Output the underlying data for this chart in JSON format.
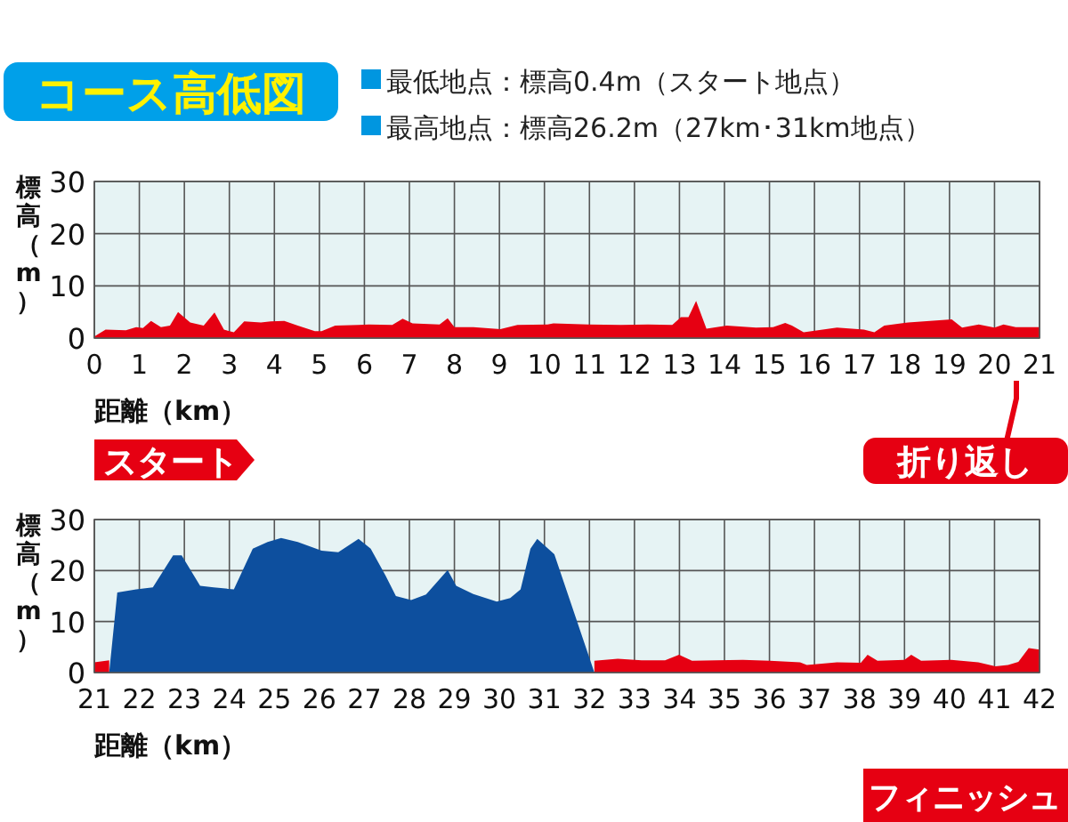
{
  "chart_data": [
    {
      "type": "area",
      "title": "コース高低図",
      "xlabel": "距離（km）",
      "ylabel": "標高（m）",
      "xlim": [
        0,
        21
      ],
      "xticks": [
        0,
        1,
        2,
        3,
        4,
        5,
        6,
        7,
        8,
        9,
        10,
        11,
        12,
        13,
        14,
        15,
        16,
        17,
        18,
        19,
        20,
        21
      ],
      "ylim": [
        0,
        30
      ],
      "yticks": [
        0,
        10,
        20,
        30
      ],
      "grid": true,
      "annotations": [
        "最低地点：標高0.4m（スタート地点）",
        "最高地点：標高26.2m（27km･31km地点）",
        "スタート",
        "折り返し"
      ],
      "series": [
        {
          "color": "#e60012",
          "x": [
            0,
            0.25,
            0.7,
            0.93,
            1.08,
            1.26,
            1.48,
            1.68,
            1.86,
            2.13,
            2.43,
            2.67,
            2.88,
            3.1,
            3.33,
            3.7,
            3.92,
            4.22,
            4.52,
            4.9,
            5.05,
            5.35,
            5.87,
            6.1,
            6.62,
            6.85,
            7.07,
            7.67,
            7.85,
            8.0,
            8.42,
            9.02,
            9.4,
            10.07,
            10.2,
            10.97,
            11.7,
            12.3,
            12.84,
            13.03,
            13.2,
            13.37,
            13.6,
            14.05,
            14.7,
            15.08,
            15.35,
            15.5,
            15.76,
            16.5,
            17.1,
            17.33,
            17.55,
            18.08,
            19.05,
            19.28,
            19.65,
            20.0,
            20.2,
            20.47,
            21
          ],
          "values": [
            0.3,
            1.6,
            1.5,
            2.1,
            1.9,
            3.3,
            2.1,
            2.4,
            5.0,
            3.0,
            2.4,
            4.9,
            1.6,
            1.1,
            3.2,
            3.0,
            3.2,
            3.3,
            2.4,
            1.3,
            1.3,
            2.4,
            2.5,
            2.6,
            2.5,
            3.7,
            2.8,
            2.6,
            3.8,
            2.1,
            2.1,
            1.7,
            2.5,
            2.6,
            2.8,
            2.6,
            2.5,
            2.6,
            2.5,
            4.0,
            4.0,
            7.1,
            1.8,
            2.4,
            2.0,
            2.1,
            2.9,
            2.4,
            1.1,
            2.0,
            1.6,
            1.1,
            2.4,
            3.0,
            3.6,
            2.0,
            2.6,
            2.0,
            2.6,
            2.1,
            2.1
          ]
        }
      ]
    },
    {
      "type": "area",
      "xlabel": "距離（km）",
      "ylabel": "標高（m）",
      "xlim": [
        21,
        42
      ],
      "xticks": [
        21,
        22,
        23,
        24,
        25,
        26,
        27,
        28,
        29,
        30,
        31,
        32,
        33,
        34,
        35,
        36,
        37,
        38,
        39,
        40,
        41,
        42
      ],
      "ylim": [
        0,
        30
      ],
      "yticks": [
        0,
        10,
        20,
        30
      ],
      "grid": true,
      "annotations": [
        "フィニッシュ"
      ],
      "series": [
        {
          "color": "#e60012",
          "x": [
            21,
            21.33
          ],
          "values": [
            2.0,
            2.4
          ]
        },
        {
          "color": "#0d4f9e",
          "x": [
            21.33,
            21.51,
            21.93,
            22.3,
            22.75,
            22.94,
            23.35,
            23.65,
            24.1,
            24.52,
            24.85,
            25.15,
            25.52,
            26.05,
            26.42,
            26.87,
            27.14,
            27.47,
            27.7,
            28.04,
            28.37,
            28.85,
            29.04,
            29.42,
            29.94,
            30.24,
            30.47,
            30.69,
            30.84,
            31.22,
            32.11
          ],
          "values": [
            0,
            15.7,
            16.3,
            16.7,
            23.0,
            23.0,
            17.0,
            16.7,
            16.3,
            24.3,
            25.6,
            26.4,
            25.6,
            23.9,
            23.6,
            26.2,
            24.3,
            19.0,
            15.0,
            14.2,
            15.3,
            20.1,
            17.0,
            15.4,
            13.9,
            14.6,
            16.3,
            24.3,
            26.2,
            23.2,
            0
          ]
        },
        {
          "color": "#e60012",
          "x": [
            32.11,
            32.63,
            33.16,
            33.68,
            33.99,
            34.28,
            34.81,
            35.41,
            36.01,
            36.68,
            36.83,
            37.5,
            38.03,
            38.18,
            38.4,
            39.0,
            39.15,
            39.37,
            40.04,
            40.64,
            41.02,
            41.3,
            41.53,
            41.76,
            42
          ],
          "values": [
            2.3,
            2.7,
            2.4,
            2.4,
            3.5,
            2.3,
            2.4,
            2.5,
            2.3,
            2.0,
            1.5,
            2.0,
            1.9,
            3.5,
            2.3,
            2.5,
            3.5,
            2.3,
            2.5,
            2.0,
            1.2,
            1.5,
            2.1,
            4.8,
            4.5
          ]
        }
      ]
    }
  ]
}
